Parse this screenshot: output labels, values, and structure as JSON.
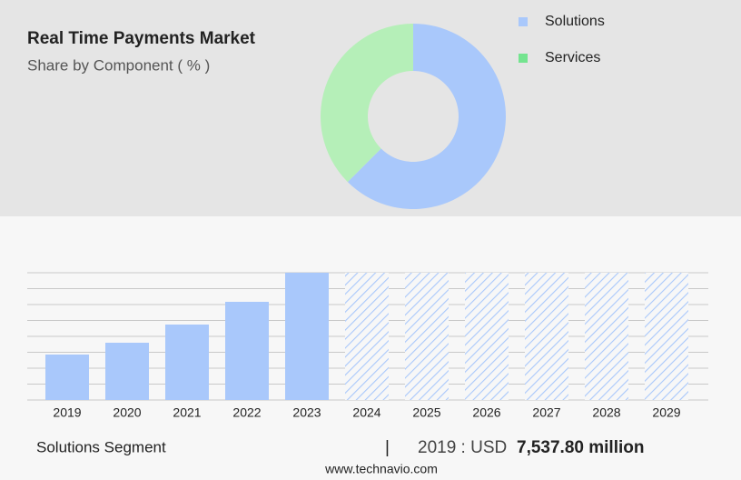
{
  "chart_data": [
    {
      "type": "donut",
      "title": "Real Time Payments Market",
      "subtitle": "Share by Component ( % )",
      "categories": [
        "Solutions",
        "Services"
      ],
      "values": [
        62.5,
        37.5
      ],
      "colors": [
        "#a9c8fb",
        "#b5efb8"
      ],
      "legend_colors": [
        "#a9c8fb",
        "#74e48f"
      ]
    },
    {
      "type": "bar",
      "categories": [
        "2019",
        "2020",
        "2021",
        "2022",
        "2023",
        "2024",
        "2025",
        "2026",
        "2027",
        "2028",
        "2029"
      ],
      "values": [
        50,
        63,
        83,
        108,
        140,
        140,
        140,
        140,
        140,
        140,
        140
      ],
      "forecast": [
        false,
        false,
        false,
        false,
        false,
        true,
        true,
        true,
        true,
        true,
        true
      ],
      "color": "#a9c8fb",
      "ylim": [
        0,
        140
      ],
      "yticks": [
        0,
        17.5,
        35,
        52.5,
        70,
        87.5,
        105,
        122.5,
        140
      ],
      "grid": true
    }
  ],
  "footer": {
    "segment": "Solutions Segment",
    "separator": "|",
    "year": "2019 : USD",
    "amount": "7,537.80 million",
    "source": "www.technavio.com"
  }
}
